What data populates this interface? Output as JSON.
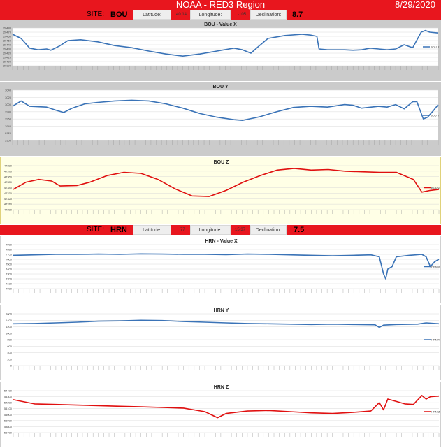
{
  "header": {
    "title": "NOAA - RED3 Region",
    "date": "8/29/2020"
  },
  "sites": [
    {
      "site_label": "SITE:",
      "site": "BOU",
      "lat_label": "Latitude:",
      "lat": "40.14",
      "lon_label": "Longitude:",
      "lon": "-105",
      "dec_label": "Declination:",
      "dec": "8.7"
    },
    {
      "site_label": "SITE:",
      "site": "HRN",
      "lat_label": "Latitude:",
      "lat": "77",
      "lon_label": "Longitude:",
      "lon": "15.37",
      "dec_label": "Declination:",
      "dec": "7.5"
    }
  ],
  "colors": {
    "header_red": "#e8161e",
    "blue": "#3a73b7",
    "red": "#e01010"
  },
  "chart_data": [
    {
      "id": "bou-x",
      "type": "line",
      "title": "BOU - Value X",
      "bg": "grey",
      "color": "#3a73b7",
      "legend": "BOU X",
      "y_ticks": [
        "20480",
        "20470",
        "20460",
        "20450",
        "20440",
        "20430",
        "20420",
        "20410",
        "20400",
        "20390"
      ],
      "ylim": [
        20390,
        20480
      ],
      "points": [
        [
          0,
          20465
        ],
        [
          0.02,
          20455
        ],
        [
          0.04,
          20432
        ],
        [
          0.06,
          20428
        ],
        [
          0.08,
          20430
        ],
        [
          0.09,
          20427
        ],
        [
          0.11,
          20437
        ],
        [
          0.13,
          20450
        ],
        [
          0.16,
          20452
        ],
        [
          0.2,
          20447
        ],
        [
          0.24,
          20438
        ],
        [
          0.28,
          20433
        ],
        [
          0.32,
          20425
        ],
        [
          0.36,
          20418
        ],
        [
          0.4,
          20413
        ],
        [
          0.44,
          20418
        ],
        [
          0.48,
          20425
        ],
        [
          0.52,
          20432
        ],
        [
          0.54,
          20428
        ],
        [
          0.56,
          20420
        ],
        [
          0.58,
          20438
        ],
        [
          0.6,
          20455
        ],
        [
          0.64,
          20462
        ],
        [
          0.68,
          20465
        ],
        [
          0.7,
          20463
        ],
        [
          0.715,
          20460
        ],
        [
          0.72,
          20430
        ],
        [
          0.74,
          20428
        ],
        [
          0.78,
          20428
        ],
        [
          0.8,
          20427
        ],
        [
          0.82,
          20428
        ],
        [
          0.84,
          20432
        ],
        [
          0.86,
          20430
        ],
        [
          0.88,
          20428
        ],
        [
          0.9,
          20430
        ],
        [
          0.92,
          20440
        ],
        [
          0.94,
          20433
        ],
        [
          0.96,
          20470
        ],
        [
          0.97,
          20474
        ],
        [
          0.98,
          20470
        ],
        [
          1,
          20468
        ]
      ]
    },
    {
      "id": "bou-y",
      "type": "line",
      "title": "BOU Y",
      "bg": "grey",
      "color": "#3a73b7",
      "legend": "BOU Y",
      "y_ticks": [
        "3040",
        "3020",
        "3000",
        "2980",
        "2960",
        "2940",
        "2920",
        "2900"
      ],
      "ylim": [
        2900,
        3040
      ],
      "points": [
        [
          0,
          2995
        ],
        [
          0.02,
          3010
        ],
        [
          0.04,
          2995
        ],
        [
          0.08,
          2993
        ],
        [
          0.1,
          2985
        ],
        [
          0.12,
          2978
        ],
        [
          0.14,
          2990
        ],
        [
          0.17,
          3002
        ],
        [
          0.2,
          3006
        ],
        [
          0.24,
          3010
        ],
        [
          0.28,
          3012
        ],
        [
          0.32,
          3010
        ],
        [
          0.36,
          3002
        ],
        [
          0.4,
          2990
        ],
        [
          0.44,
          2975
        ],
        [
          0.48,
          2965
        ],
        [
          0.52,
          2958
        ],
        [
          0.54,
          2956
        ],
        [
          0.58,
          2966
        ],
        [
          0.62,
          2980
        ],
        [
          0.66,
          2992
        ],
        [
          0.7,
          2995
        ],
        [
          0.74,
          2993
        ],
        [
          0.78,
          3000
        ],
        [
          0.8,
          2998
        ],
        [
          0.82,
          2990
        ],
        [
          0.86,
          2995
        ],
        [
          0.88,
          2993
        ],
        [
          0.9,
          3000
        ],
        [
          0.92,
          2988
        ],
        [
          0.94,
          3008
        ],
        [
          0.95,
          3008
        ],
        [
          0.965,
          2960
        ],
        [
          0.975,
          2965
        ],
        [
          0.99,
          2985
        ],
        [
          1,
          3000
        ]
      ]
    },
    {
      "id": "bou-z",
      "type": "line",
      "title": "BOU Z",
      "bg": "yellow",
      "color": "#e01010",
      "legend": "BOU Z",
      "y_ticks": [
        "47380",
        "47370",
        "47360",
        "47350",
        "47340",
        "47330",
        "47320",
        "47310",
        "47300"
      ],
      "ylim": [
        47300,
        47380
      ],
      "points": [
        [
          0,
          47337
        ],
        [
          0.03,
          47350
        ],
        [
          0.06,
          47355
        ],
        [
          0.09,
          47352
        ],
        [
          0.11,
          47343
        ],
        [
          0.15,
          47344
        ],
        [
          0.18,
          47350
        ],
        [
          0.22,
          47362
        ],
        [
          0.26,
          47368
        ],
        [
          0.3,
          47366
        ],
        [
          0.34,
          47355
        ],
        [
          0.38,
          47338
        ],
        [
          0.42,
          47325
        ],
        [
          0.46,
          47324
        ],
        [
          0.5,
          47335
        ],
        [
          0.54,
          47350
        ],
        [
          0.58,
          47362
        ],
        [
          0.62,
          47372
        ],
        [
          0.66,
          47375
        ],
        [
          0.7,
          47372
        ],
        [
          0.74,
          47373
        ],
        [
          0.78,
          47370
        ],
        [
          0.82,
          47369
        ],
        [
          0.86,
          47368
        ],
        [
          0.9,
          47368
        ],
        [
          0.94,
          47355
        ],
        [
          0.96,
          47332
        ],
        [
          0.98,
          47335
        ],
        [
          1,
          47337
        ]
      ]
    },
    {
      "id": "hrn-x",
      "type": "line",
      "title": "HRN - Value X",
      "bg": "white",
      "color": "#3a73b7",
      "legend": "HRN X",
      "y_ticks": [
        "7900",
        "7800",
        "7700",
        "7600",
        "7500",
        "7400",
        "7300",
        "7200",
        "7100",
        "7000"
      ],
      "ylim": [
        7000,
        7900
      ],
      "points": [
        [
          0,
          7680
        ],
        [
          0.05,
          7690
        ],
        [
          0.1,
          7700
        ],
        [
          0.15,
          7700
        ],
        [
          0.2,
          7705
        ],
        [
          0.25,
          7700
        ],
        [
          0.3,
          7710
        ],
        [
          0.35,
          7705
        ],
        [
          0.4,
          7700
        ],
        [
          0.45,
          7700
        ],
        [
          0.5,
          7695
        ],
        [
          0.55,
          7705
        ],
        [
          0.6,
          7700
        ],
        [
          0.65,
          7690
        ],
        [
          0.7,
          7680
        ],
        [
          0.75,
          7670
        ],
        [
          0.8,
          7680
        ],
        [
          0.84,
          7690
        ],
        [
          0.86,
          7650
        ],
        [
          0.87,
          7300
        ],
        [
          0.875,
          7200
        ],
        [
          0.88,
          7400
        ],
        [
          0.89,
          7450
        ],
        [
          0.9,
          7650
        ],
        [
          0.93,
          7680
        ],
        [
          0.96,
          7700
        ],
        [
          0.97,
          7650
        ],
        [
          0.98,
          7450
        ],
        [
          0.99,
          7550
        ],
        [
          1,
          7600
        ]
      ]
    },
    {
      "id": "hrn-y",
      "type": "line",
      "title": "HRN Y",
      "bg": "white",
      "color": "#3a73b7",
      "legend": "HRN Y",
      "y_ticks": [
        "1600",
        "1400",
        "1200",
        "1000",
        "800",
        "600",
        "400",
        "200",
        "0"
      ],
      "ylim": [
        0,
        1600
      ],
      "points": [
        [
          0,
          1290
        ],
        [
          0.05,
          1300
        ],
        [
          0.1,
          1320
        ],
        [
          0.15,
          1340
        ],
        [
          0.2,
          1370
        ],
        [
          0.25,
          1380
        ],
        [
          0.3,
          1400
        ],
        [
          0.35,
          1390
        ],
        [
          0.4,
          1360
        ],
        [
          0.45,
          1340
        ],
        [
          0.5,
          1320
        ],
        [
          0.55,
          1300
        ],
        [
          0.6,
          1290
        ],
        [
          0.65,
          1280
        ],
        [
          0.7,
          1270
        ],
        [
          0.75,
          1280
        ],
        [
          0.8,
          1270
        ],
        [
          0.85,
          1260
        ],
        [
          0.86,
          1180
        ],
        [
          0.87,
          1250
        ],
        [
          0.9,
          1270
        ],
        [
          0.95,
          1280
        ],
        [
          0.97,
          1320
        ],
        [
          1,
          1290
        ]
      ]
    },
    {
      "id": "hrn-z",
      "type": "line",
      "title": "HRN Z",
      "bg": "white",
      "color": "#e01010",
      "legend": "HRN Z",
      "y_ticks": [
        "54400",
        "54300",
        "54200",
        "54100",
        "54000",
        "53900",
        "53800",
        "53700"
      ],
      "ylim": [
        53700,
        54400
      ],
      "points": [
        [
          0,
          54250
        ],
        [
          0.05,
          54180
        ],
        [
          0.1,
          54170
        ],
        [
          0.15,
          54160
        ],
        [
          0.2,
          54150
        ],
        [
          0.25,
          54140
        ],
        [
          0.3,
          54130
        ],
        [
          0.35,
          54120
        ],
        [
          0.4,
          54110
        ],
        [
          0.45,
          54050
        ],
        [
          0.48,
          53950
        ],
        [
          0.5,
          54020
        ],
        [
          0.55,
          54060
        ],
        [
          0.6,
          54070
        ],
        [
          0.65,
          54050
        ],
        [
          0.7,
          54030
        ],
        [
          0.75,
          54020
        ],
        [
          0.8,
          54040
        ],
        [
          0.84,
          54060
        ],
        [
          0.86,
          54200
        ],
        [
          0.87,
          54080
        ],
        [
          0.88,
          54260
        ],
        [
          0.9,
          54220
        ],
        [
          0.92,
          54180
        ],
        [
          0.94,
          54170
        ],
        [
          0.96,
          54320
        ],
        [
          0.97,
          54260
        ],
        [
          0.98,
          54300
        ],
        [
          1,
          54310
        ]
      ]
    }
  ]
}
